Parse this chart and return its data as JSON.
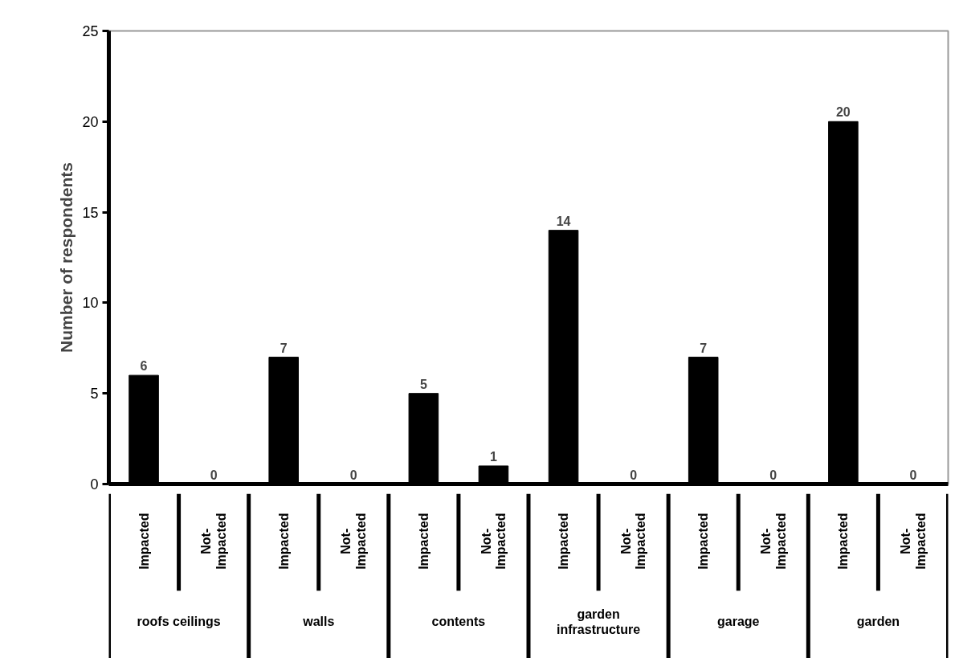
{
  "chart_data": {
    "type": "bar",
    "ylabel": "Number of respondents",
    "categories": [
      "Impacted",
      "Not-Impacted",
      "Impacted",
      "Not-Impacted",
      "Impacted",
      "Not-Impacted",
      "Impacted",
      "Not-Impacted",
      "Impacted",
      "Not-Impacted",
      "Impacted",
      "Not-Impacted"
    ],
    "values": [
      6,
      0,
      7,
      0,
      5,
      1,
      14,
      0,
      7,
      0,
      20,
      0
    ],
    "color": "#000000",
    "ylim": [
      0,
      25
    ],
    "yticks": [
      0,
      5,
      10,
      15,
      20,
      25
    ],
    "grid": false,
    "data_labels": true,
    "annotations": [
      "roofs ceilings",
      "walls",
      "contents",
      "garden infrastructure",
      "garage",
      "garden"
    ]
  }
}
